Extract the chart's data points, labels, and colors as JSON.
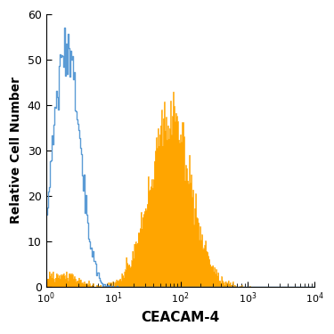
{
  "title": "",
  "xlabel": "CEACAM-4",
  "ylabel": "Relative Cell Number",
  "xlim_log": [
    1,
    10000
  ],
  "ylim": [
    0,
    60
  ],
  "yticks": [
    0,
    10,
    20,
    30,
    40,
    50,
    60
  ],
  "filled_color": "#FFA500",
  "open_color": "#5B9BD5",
  "background_color": "#FFFFFF",
  "xlabel_fontsize": 11,
  "ylabel_fontsize": 10
}
